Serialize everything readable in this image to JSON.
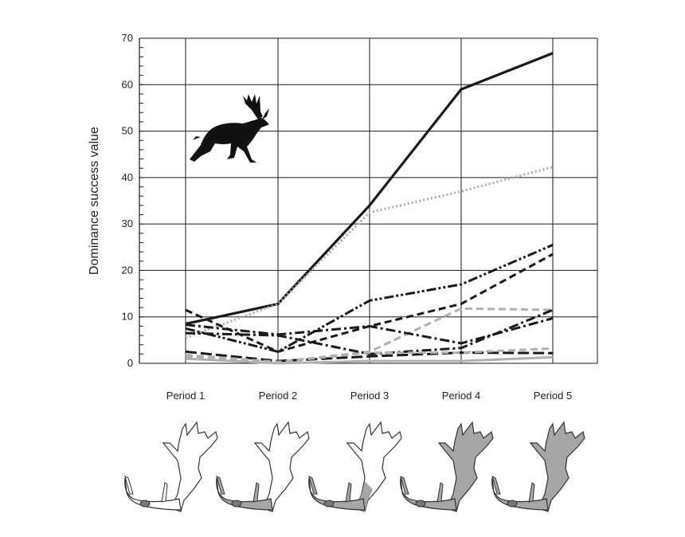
{
  "chart_data": {
    "type": "line",
    "title": "",
    "xlabel": "",
    "ylabel": "Dominance success value",
    "categories": [
      "Period 1",
      "Period 2",
      "Period 3",
      "Period 4",
      "Period 5"
    ],
    "ylim": [
      0,
      70
    ],
    "yticks": [
      0,
      10,
      20,
      30,
      40,
      50,
      60,
      70
    ],
    "grid": true,
    "series": [
      {
        "style": "solid",
        "color": "#1a1a1a",
        "values": [
          8.5,
          12.8,
          34,
          59,
          66.8
        ]
      },
      {
        "style": "dotted",
        "color": "#aaaaaa",
        "values": [
          5.5,
          12.8,
          32.5,
          37,
          42.3
        ]
      },
      {
        "style": "dash-dot-dot",
        "color": "#1a1a1a",
        "values": [
          7.5,
          2.5,
          13.5,
          17,
          25.5
        ]
      },
      {
        "style": "dashed",
        "color": "#1a1a1a",
        "values": [
          11.5,
          2.5,
          8,
          12.8,
          23.5
        ]
      },
      {
        "style": "dashed",
        "color": "#b0b0b0",
        "values": [
          1.5,
          0.3,
          2.5,
          11.8,
          11.5
        ]
      },
      {
        "style": "dash-dot",
        "color": "#1a1a1a",
        "values": [
          8.3,
          6.2,
          8,
          4.3,
          9.7
        ]
      },
      {
        "style": "dash-dot",
        "color": "#1a1a1a",
        "values": [
          6.5,
          6,
          2,
          3.3,
          11.5
        ]
      },
      {
        "style": "long-dash",
        "color": "#1a1a1a",
        "values": [
          2.5,
          0.5,
          1.5,
          2.3,
          2.2
        ]
      },
      {
        "style": "dashed",
        "color": "#b0b0b0",
        "values": [
          1.8,
          0.3,
          2.3,
          2.3,
          3.2
        ]
      },
      {
        "style": "solid",
        "color": "#b0b0b0",
        "values": [
          1,
          0,
          0.5,
          0.5,
          1.3
        ]
      }
    ]
  },
  "illustrations": {
    "animal_icon": "fallow-deer-silhouette-icon",
    "antler_stages": [
      {
        "period": "Period 1",
        "shading": "none"
      },
      {
        "period": "Period 2",
        "shading": "base"
      },
      {
        "period": "Period 3",
        "shading": "lower-palm"
      },
      {
        "period": "Period 4",
        "shading": "palm"
      },
      {
        "period": "Period 5",
        "shading": "full"
      }
    ]
  },
  "colors": {
    "grid": "#1a1a1a",
    "antler_fill": "#a6a6a6",
    "antler_outline": "#333333"
  }
}
